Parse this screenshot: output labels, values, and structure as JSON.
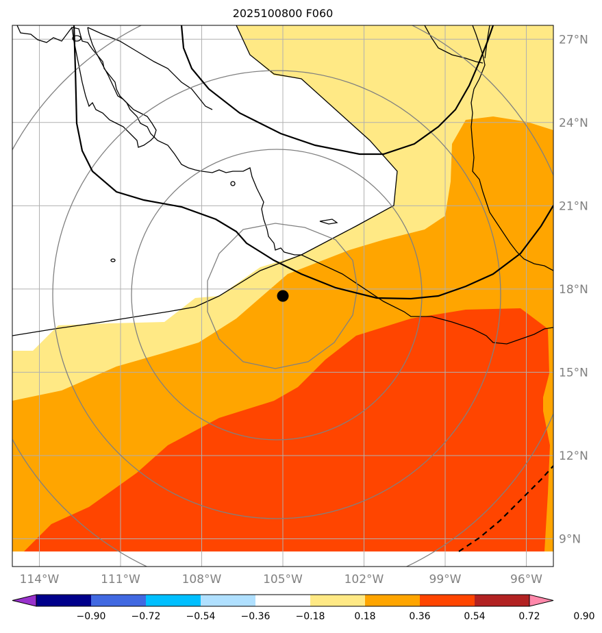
{
  "title": "2025100800 F060",
  "map": {
    "lon_range": [
      -115,
      -95
    ],
    "lat_range": [
      8,
      27.5
    ],
    "lon_ticks": [
      "114°W",
      "111°W",
      "108°W",
      "105°W",
      "102°W",
      "99°W",
      "96°W"
    ],
    "lat_ticks": [
      "27°N",
      "24°N",
      "21°N",
      "18°N",
      "15°N",
      "12°N",
      "9°N"
    ],
    "gridlines": true,
    "center_marker": {
      "lon": -104.8,
      "lat": 17.4
    },
    "range_rings": "concentric gray circles around center",
    "fill_colors": {
      "0.18-0.36": "#ffe985",
      "0.36-0.54": "#ffa500",
      "0.54-0.72": "#ff4500"
    }
  },
  "colorbar": {
    "labels": [
      "−0.90",
      "−0.72",
      "−0.54",
      "−0.36",
      "−0.18",
      "0.18",
      "0.36",
      "0.54",
      "0.72",
      "0.90"
    ],
    "colors": [
      "#9932cc",
      "#00008b",
      "#4169e1",
      "#00bfff",
      "#b0e0ff",
      "#ffffff",
      "#ffe985",
      "#ffa500",
      "#ff4500",
      "#b22222",
      "#ff88aa"
    ]
  }
}
